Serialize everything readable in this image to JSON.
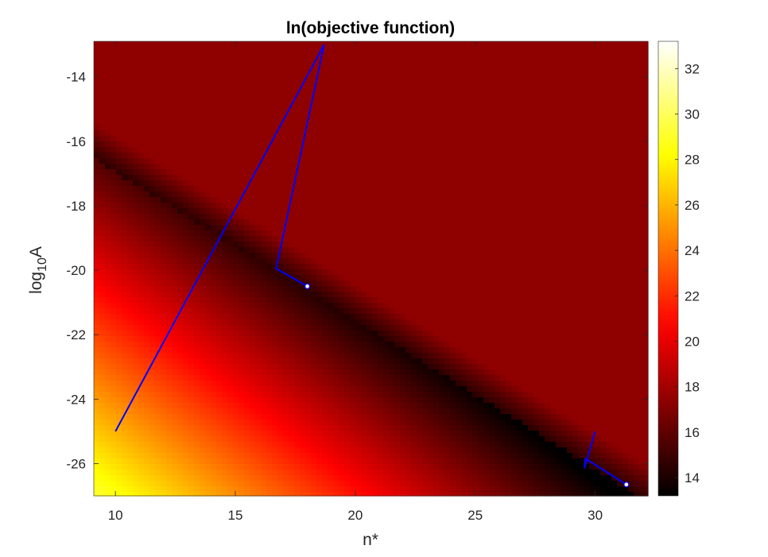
{
  "chart_data": {
    "type": "heatmap",
    "title": "ln(objective function)",
    "xlabel": "n*",
    "ylabel": {
      "base": "log",
      "subscript": "10",
      "suffix": "A"
    },
    "xlim": [
      9.1,
      32.2
    ],
    "ylim": [
      -27.0,
      -12.9
    ],
    "x_ticks": [
      10,
      15,
      20,
      25,
      30
    ],
    "y_ticks": [
      -14,
      -16,
      -18,
      -20,
      -22,
      -24,
      -26
    ],
    "colormap": "hot",
    "colorbar": {
      "range": [
        13.2,
        33.2
      ],
      "ticks": [
        14,
        16,
        18,
        20,
        22,
        24,
        26,
        28,
        30,
        32
      ]
    },
    "grid": false,
    "paths": [
      {
        "color": "#0000ff",
        "points": [
          [
            10.0,
            -25.0
          ],
          [
            18.7,
            -13.0
          ],
          [
            16.7,
            -19.95
          ],
          [
            18.0,
            -20.5
          ]
        ],
        "end_marker": [
          18.0,
          -20.5
        ]
      },
      {
        "color": "#0000ff",
        "points": [
          [
            30.0,
            -25.0
          ],
          [
            29.55,
            -26.15
          ],
          [
            29.6,
            -25.85
          ],
          [
            31.3,
            -26.65
          ]
        ],
        "end_marker": [
          31.3,
          -26.65
        ]
      }
    ]
  }
}
